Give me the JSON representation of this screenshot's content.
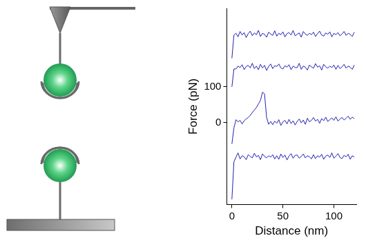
{
  "chart_data": {
    "type": "line",
    "x_label": "Distance (nm)",
    "y_label": "Force (pN)",
    "x": [
      0,
      2,
      4,
      6,
      8,
      10,
      12,
      14,
      16,
      18,
      20,
      22,
      24,
      26,
      28,
      30,
      32,
      34,
      36,
      38,
      40,
      42,
      44,
      46,
      48,
      50,
      52,
      54,
      56,
      58,
      60,
      62,
      64,
      66,
      68,
      70,
      72,
      74,
      76,
      78,
      80,
      82,
      84,
      86,
      88,
      90,
      92,
      94,
      96,
      98,
      100,
      102,
      104,
      106,
      108,
      110,
      112,
      114,
      116,
      118,
      120
    ],
    "series": [
      {
        "color": "#1f1fb4",
        "values": [
          180,
          245,
          250,
          240,
          255,
          245,
          252,
          238,
          249,
          256,
          243,
          251,
          246,
          258,
          241,
          250,
          247,
          239,
          253,
          248,
          244,
          257,
          242,
          250,
          246,
          254,
          240,
          249,
          252,
          245,
          258,
          243,
          247,
          251,
          239,
          255,
          248,
          244,
          250,
          246,
          253,
          241,
          249,
          256,
          245,
          242,
          251,
          247,
          254,
          240,
          250,
          246,
          252,
          243,
          248,
          255,
          244,
          250,
          247,
          241,
          253
        ]
      },
      {
        "color": "#1f1fb4",
        "values": [
          100,
          150,
          150,
          158,
          154,
          162,
          148,
          157,
          160,
          153,
          166,
          151,
          158,
          148,
          163,
          153,
          160,
          146,
          157,
          164,
          151,
          159,
          157,
          164,
          153,
          150,
          159,
          155,
          162,
          148,
          158,
          154,
          154,
          166,
          149,
          158,
          155,
          147,
          161,
          156,
          152,
          165,
          155,
          159,
          147,
          163,
          156,
          152,
          158,
          154,
          161,
          149,
          160,
          151,
          156,
          163,
          152,
          158,
          155,
          149,
          161
        ]
      },
      {
        "color": "#1f1fb4",
        "values": [
          -60,
          -15,
          8,
          2,
          6,
          -4,
          5,
          10,
          14,
          20,
          28,
          35,
          42,
          52,
          62,
          85,
          80,
          15,
          -5,
          3,
          -6,
          4,
          -2,
          8,
          -8,
          2,
          6,
          -4,
          9,
          -3,
          5,
          -7,
          3,
          10,
          -1,
          7,
          -5,
          12,
          2,
          6,
          14,
          4,
          9,
          -2,
          11,
          5,
          15,
          3,
          8,
          13,
          6,
          16,
          4,
          10,
          14,
          7,
          12,
          18,
          9,
          15,
          11
        ]
      },
      {
        "color": "#1f1fb4",
        "values": [
          -215,
          -110,
          -97,
          -85,
          -102,
          -93,
          -96,
          -104,
          -90,
          -95,
          -99,
          -86,
          -96,
          -92,
          -104,
          -88,
          -95,
          -99,
          -93,
          -97,
          -90,
          -102,
          -93,
          -103,
          -88,
          -98,
          -91,
          -105,
          -94,
          -87,
          -100,
          -92,
          -91,
          -100,
          -95,
          -88,
          -99,
          -93,
          -96,
          -102,
          -90,
          -101,
          -93,
          -97,
          -89,
          -103,
          -94,
          -91,
          -98,
          -85,
          -100,
          -94,
          -87,
          -98,
          -101,
          -92,
          -96,
          -89,
          -103,
          -93,
          -97
        ]
      }
    ],
    "xlim": [
      -5,
      122
    ],
    "xticks": [
      0,
      50,
      100
    ],
    "ylim": [
      -230,
      320
    ],
    "yticks": [
      0,
      100
    ],
    "grid": false
  }
}
